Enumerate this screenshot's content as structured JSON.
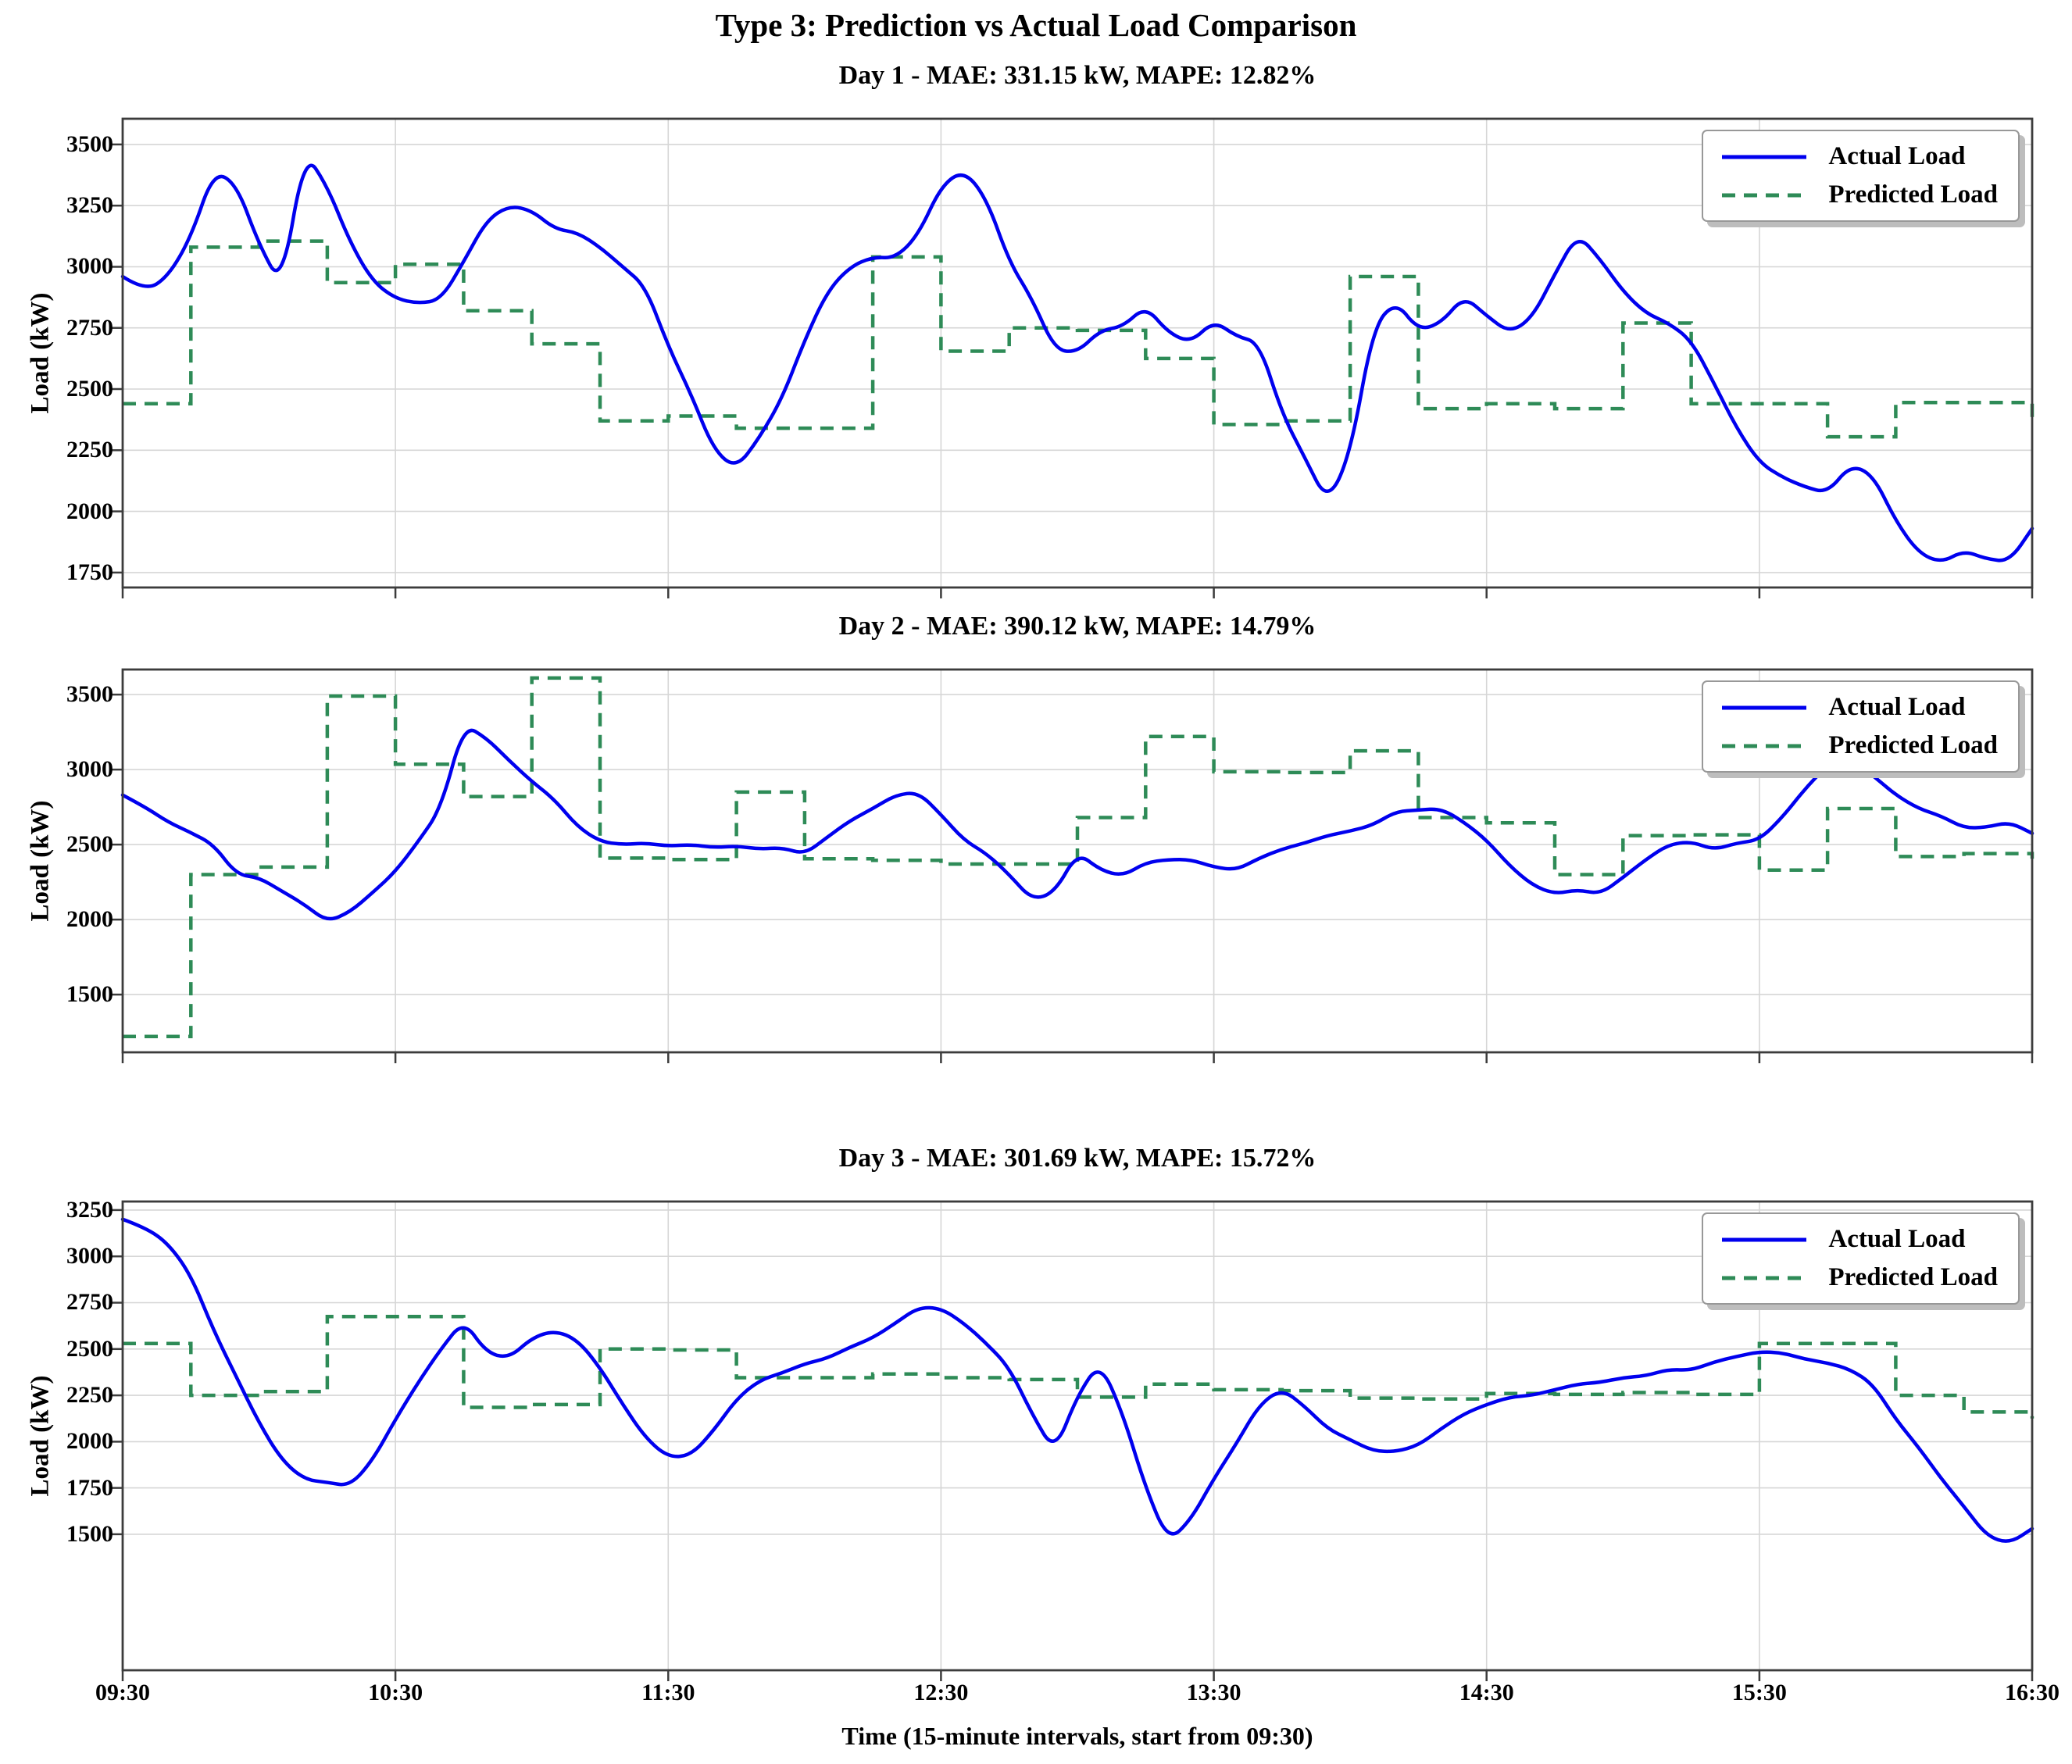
{
  "figure": {
    "title": "Type 3: Prediction vs Actual Load Comparison",
    "xlabel": "Time (15-minute intervals, start from 09:30)",
    "ylabel": "Load (kW)"
  },
  "legend": {
    "actual_label": "Actual Load",
    "predicted_label": "Predicted Load"
  },
  "colors": {
    "actual": "#0000EE",
    "predicted": "#2E8B57",
    "grid": "#D6D6D6",
    "spine": "#3C3C3C",
    "text": "#000000"
  },
  "x_ticks": [
    "09:30",
    "10:30",
    "11:30",
    "12:30",
    "13:30",
    "14:30",
    "15:30",
    "16:30"
  ],
  "x_minutes_span": [
    0,
    420
  ],
  "chart_data": [
    {
      "type": "line",
      "title": "Day 1 - MAE: 331.15 kW, MAPE: 12.82%",
      "mae_kw": 331.15,
      "mape_pct": 12.82,
      "ylim": [
        1689,
        3605
      ],
      "y_ticks": [
        1750,
        2000,
        2250,
        2500,
        2750,
        3000,
        3250,
        3500
      ],
      "series": [
        {
          "name": "Actual Load",
          "interval_min": 5,
          "values": [
            2960,
            2900,
            2960,
            3120,
            3390,
            3340,
            3090,
            2920,
            3470,
            3330,
            3100,
            2940,
            2870,
            2850,
            2865,
            3020,
            3190,
            3250,
            3230,
            3155,
            3140,
            3080,
            3000,
            2920,
            2675,
            2480,
            2250,
            2175,
            2300,
            2460,
            2700,
            2900,
            3000,
            3040,
            3035,
            3130,
            3330,
            3395,
            3280,
            3020,
            2870,
            2660,
            2650,
            2740,
            2755,
            2840,
            2730,
            2690,
            2780,
            2715,
            2690,
            2400,
            2220,
            2035,
            2230,
            2750,
            2860,
            2740,
            2770,
            2880,
            2800,
            2730,
            2790,
            2970,
            3135,
            3030,
            2900,
            2810,
            2770,
            2700,
            2525,
            2340,
            2200,
            2140,
            2100,
            2075,
            2190,
            2150,
            1960,
            1830,
            1790,
            1840,
            1805,
            1795,
            1930
          ]
        },
        {
          "name": "Predicted Load",
          "interval_min": 15,
          "step": true,
          "values": [
            2440,
            3080,
            3105,
            2935,
            3010,
            2820,
            2685,
            2370,
            2390,
            2340,
            2340,
            3040,
            2655,
            2750,
            2740,
            2625,
            2355,
            2370,
            2960,
            2420,
            2440,
            2420,
            2770,
            2440,
            2440,
            2305,
            2445,
            2445
          ],
          "end_value": 2370
        }
      ]
    },
    {
      "type": "line",
      "title": "Day 2 - MAE: 390.12 kW, MAPE: 14.79%",
      "mae_kw": 390.12,
      "mape_pct": 14.79,
      "ylim": [
        1115,
        3667
      ],
      "y_ticks": [
        1500,
        2000,
        2500,
        3000,
        3500
      ],
      "series": [
        {
          "name": "Actual Load",
          "interval_min": 5,
          "values": [
            2830,
            2750,
            2650,
            2580,
            2500,
            2300,
            2280,
            2190,
            2100,
            1985,
            2050,
            2180,
            2320,
            2520,
            2740,
            3300,
            3210,
            3060,
            2920,
            2800,
            2620,
            2520,
            2500,
            2510,
            2490,
            2500,
            2480,
            2490,
            2470,
            2480,
            2435,
            2550,
            2660,
            2740,
            2830,
            2850,
            2700,
            2530,
            2440,
            2300,
            2130,
            2180,
            2450,
            2330,
            2290,
            2380,
            2400,
            2400,
            2350,
            2330,
            2410,
            2470,
            2510,
            2560,
            2590,
            2630,
            2720,
            2730,
            2740,
            2650,
            2530,
            2360,
            2230,
            2170,
            2200,
            2170,
            2280,
            2400,
            2500,
            2520,
            2465,
            2510,
            2530,
            2680,
            2870,
            3030,
            3075,
            2960,
            2830,
            2740,
            2690,
            2610,
            2615,
            2650,
            2575
          ]
        },
        {
          "name": "Predicted Load",
          "interval_min": 15,
          "step": true,
          "values": [
            1220,
            2300,
            2350,
            3490,
            3035,
            2820,
            3610,
            2410,
            2400,
            2850,
            2405,
            2395,
            2370,
            2370,
            2680,
            3220,
            2985,
            2980,
            3125,
            2680,
            2645,
            2300,
            2560,
            2565,
            2330,
            2740,
            2420,
            2440
          ],
          "end_value": 2405
        }
      ]
    },
    {
      "type": "line",
      "title": "Day 3 - MAE: 301.69 kW, MAPE: 15.72%",
      "mae_kw": 301.69,
      "mape_pct": 15.72,
      "ylim": [
        766,
        3296
      ],
      "y_ticks": [
        1500,
        1750,
        2000,
        2250,
        2500,
        2750,
        3000,
        3250
      ],
      "series": [
        {
          "name": "Actual Load",
          "interval_min": 5,
          "values": [
            3200,
            3155,
            3070,
            2900,
            2600,
            2350,
            2100,
            1900,
            1795,
            1780,
            1760,
            1900,
            2120,
            2320,
            2500,
            2655,
            2480,
            2450,
            2560,
            2600,
            2550,
            2400,
            2200,
            2020,
            1915,
            1925,
            2060,
            2230,
            2330,
            2370,
            2420,
            2450,
            2510,
            2560,
            2640,
            2725,
            2720,
            2640,
            2530,
            2400,
            2150,
            1940,
            2250,
            2430,
            2150,
            1750,
            1460,
            1580,
            1800,
            1990,
            2200,
            2285,
            2190,
            2070,
            2010,
            1950,
            1945,
            1980,
            2070,
            2150,
            2200,
            2240,
            2250,
            2280,
            2310,
            2320,
            2345,
            2355,
            2390,
            2385,
            2430,
            2460,
            2485,
            2480,
            2445,
            2425,
            2390,
            2310,
            2120,
            1970,
            1800,
            1650,
            1490,
            1450,
            1530
          ]
        },
        {
          "name": "Predicted Load",
          "interval_min": 15,
          "step": true,
          "values": [
            2530,
            2250,
            2270,
            2675,
            2675,
            2185,
            2200,
            2500,
            2495,
            2345,
            2345,
            2365,
            2345,
            2335,
            2240,
            2310,
            2280,
            2275,
            2235,
            2230,
            2260,
            2255,
            2265,
            2255,
            2530,
            2530,
            2250,
            2160
          ],
          "end_value": 2125
        }
      ]
    }
  ]
}
